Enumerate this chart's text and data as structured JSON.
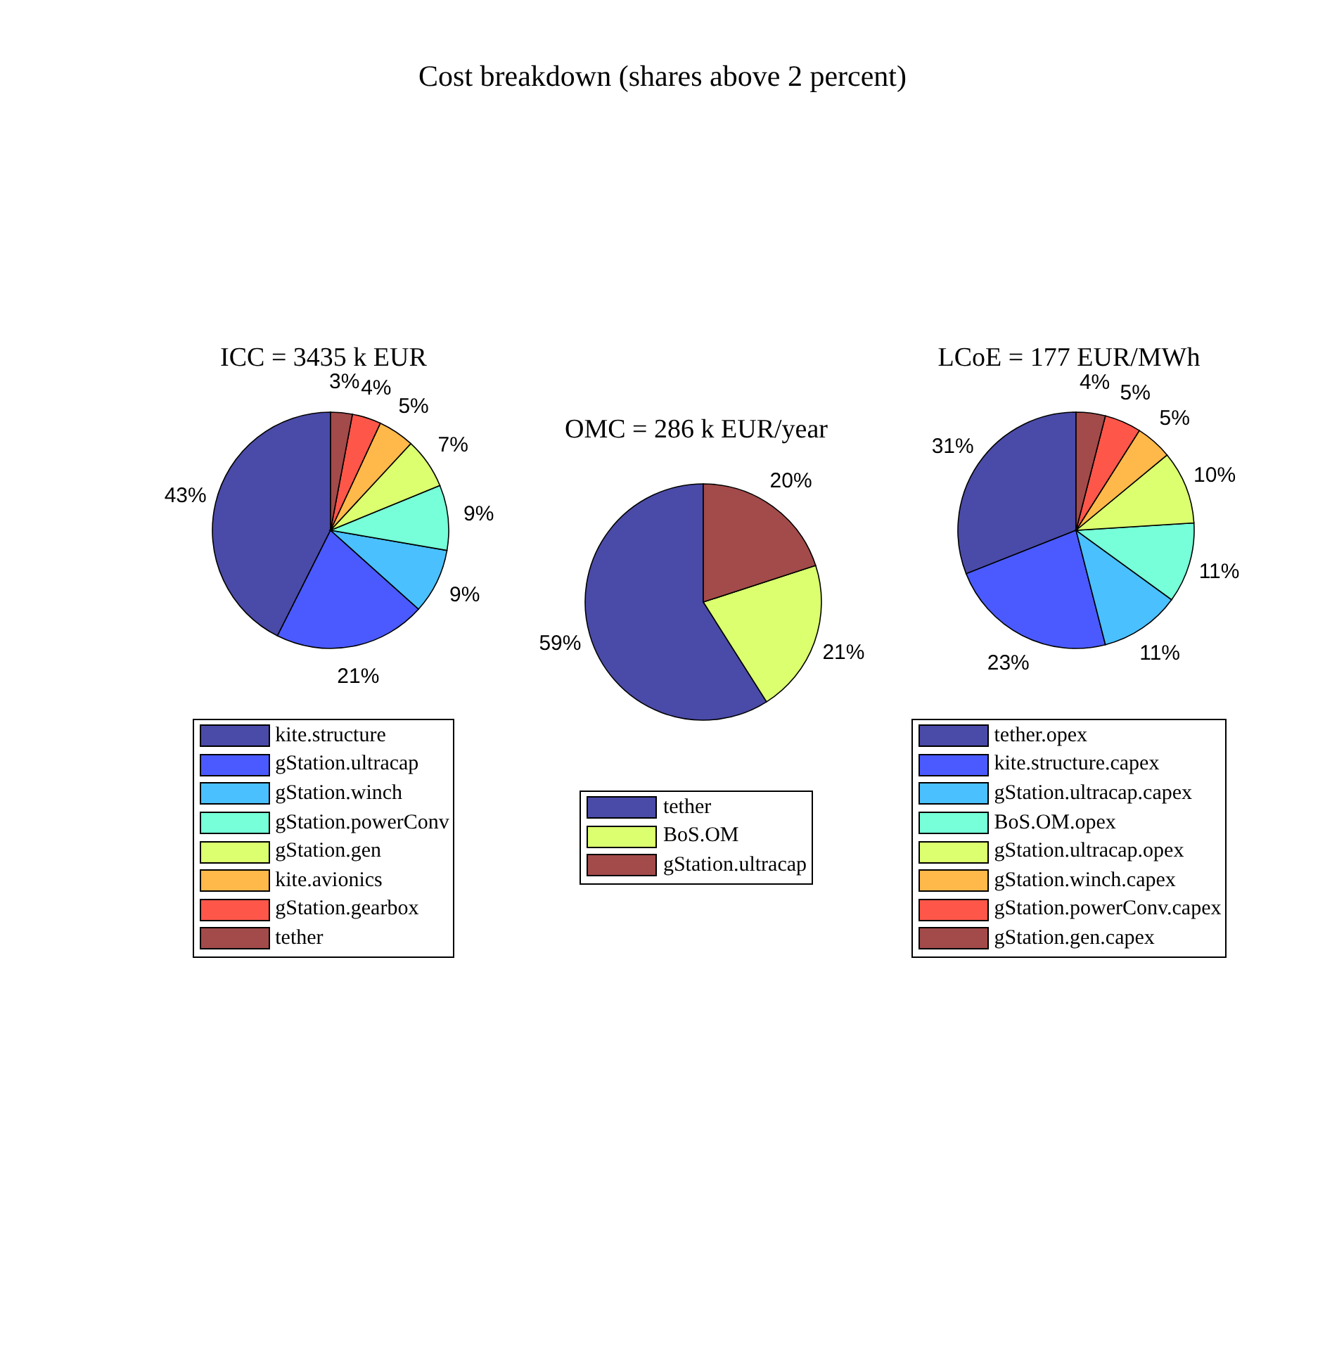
{
  "chart_data": [
    {
      "type": "pie",
      "title": "ICC = 3435 k EUR",
      "annotations": [
        "Cost breakdown (shares above 2 percent)"
      ],
      "categories": [
        "kite.structure",
        "gStation.ultracap",
        "gStation.winch",
        "gStation.powerConv",
        "gStation.gen",
        "kite.avionics",
        "gStation.gearbox",
        "tether"
      ],
      "values": [
        43,
        21,
        9,
        9,
        7,
        5,
        4,
        3
      ],
      "value_labels": [
        "43%",
        "21%",
        "9%",
        "9%",
        "7%",
        "5%",
        "4%",
        "3%"
      ],
      "colors": [
        "#4a4aa8",
        "#4a5aff",
        "#4ac0ff",
        "#76ffd8",
        "#dbff6e",
        "#ffb84a",
        "#ff564a",
        "#a34a4a"
      ],
      "legend": "bottom"
    },
    {
      "type": "pie",
      "title": "OMC = 286 k EUR/year",
      "categories": [
        "tether",
        "BoS.OM",
        "gStation.ultracap"
      ],
      "values": [
        59,
        21,
        20
      ],
      "value_labels": [
        "59%",
        "21%",
        "20%"
      ],
      "colors": [
        "#4a4aa8",
        "#dbff6e",
        "#a34a4a"
      ],
      "legend": "bottom"
    },
    {
      "type": "pie",
      "title": "LCoE = 177 EUR/MWh",
      "categories": [
        "tether.opex",
        "kite.structure.capex",
        "gStation.ultracap.capex",
        "BoS.OM.opex",
        "gStation.ultracap.opex",
        "gStation.winch.capex",
        "gStation.powerConv.capex",
        "gStation.gen.capex"
      ],
      "values": [
        31,
        23,
        11,
        11,
        10,
        5,
        5,
        4
      ],
      "value_labels": [
        "31%",
        "23%",
        "11%",
        "11%",
        "10%",
        "5%",
        "5%",
        "4%"
      ],
      "colors": [
        "#4a4aa8",
        "#4a5aff",
        "#4ac0ff",
        "#76ffd8",
        "#dbff6e",
        "#ffb84a",
        "#ff564a",
        "#a34a4a"
      ],
      "legend": "bottom"
    }
  ]
}
